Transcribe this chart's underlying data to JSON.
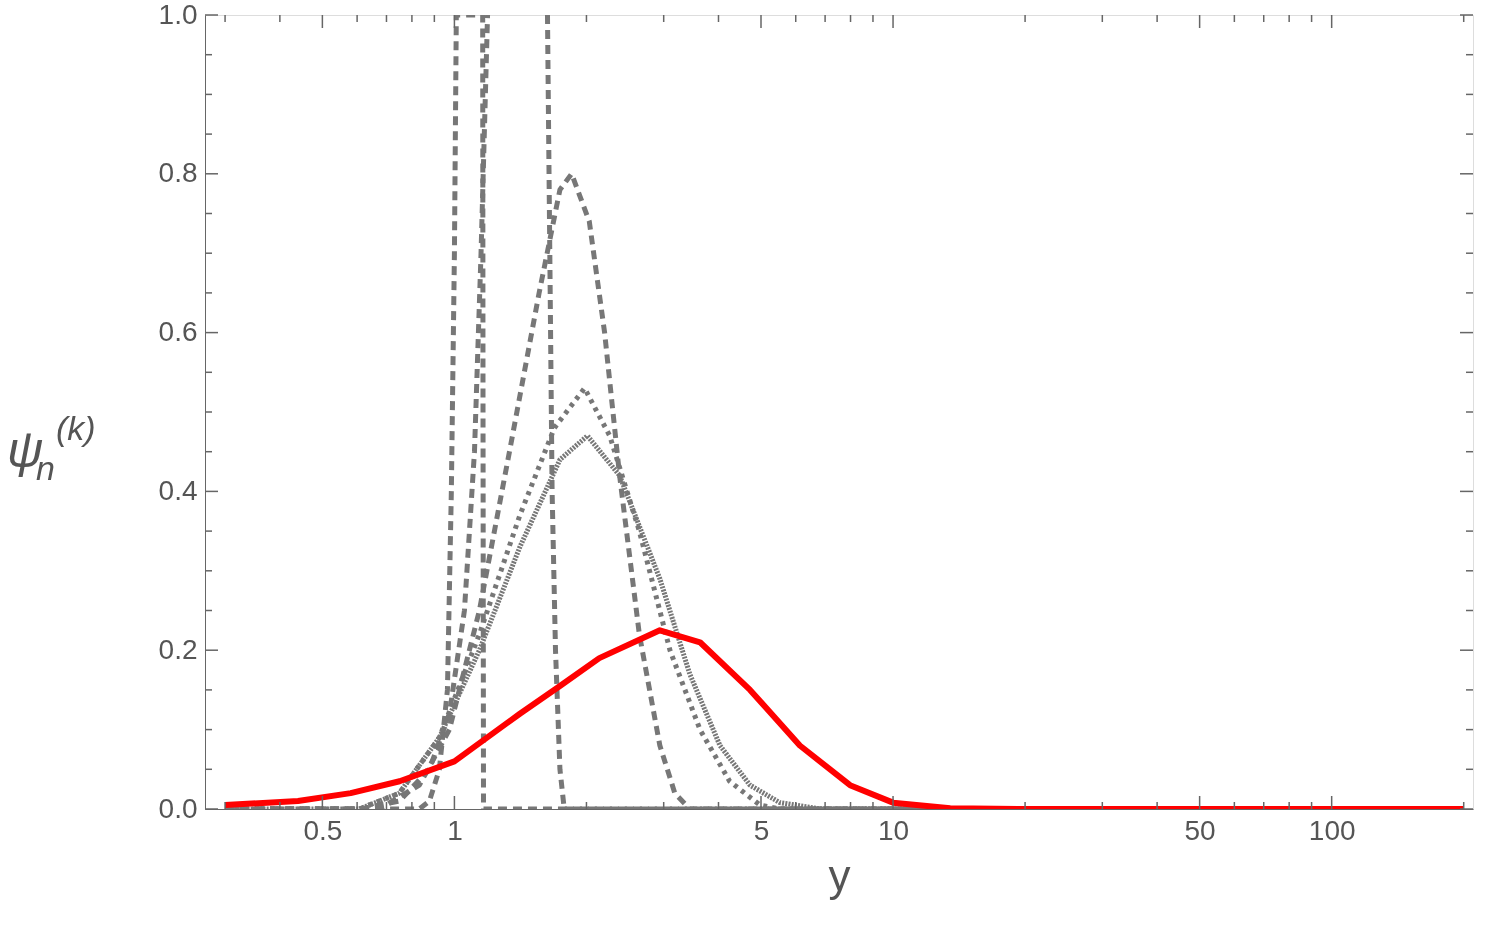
{
  "chart_data": {
    "type": "line",
    "xlabel": "y",
    "ylabel": "ψ$_{n}$$^{(k)}$",
    "log": "x",
    "grid": false,
    "xlim": [
      0.27,
      210
    ],
    "ylim": [
      0,
      1
    ],
    "xticks": [
      {
        "value": 0.3,
        "label": null
      },
      {
        "value": 0.4,
        "label": null
      },
      0.5,
      {
        "value": 0.6,
        "label": null
      },
      {
        "value": 0.7,
        "label": null
      },
      {
        "value": 0.8,
        "label": null
      },
      {
        "value": 0.9,
        "label": null
      },
      1,
      {
        "value": 2,
        "label": null
      },
      {
        "value": 3,
        "label": null
      },
      {
        "value": 4,
        "label": null
      },
      5,
      {
        "value": 6,
        "label": null
      },
      {
        "value": 7,
        "label": null
      },
      {
        "value": 8,
        "label": null
      },
      {
        "value": 9,
        "label": null
      },
      10,
      {
        "value": 20,
        "label": null
      },
      {
        "value": 30,
        "label": null
      },
      {
        "value": 40,
        "label": null
      },
      50,
      {
        "value": 60,
        "label": null
      },
      {
        "value": 70,
        "label": null
      },
      {
        "value": 80,
        "label": null
      },
      {
        "value": 90,
        "label": null
      },
      100,
      {
        "value": 200,
        "label": null
      }
    ],
    "yticks": [
      {
        "value": 0,
        "label": "0.0"
      },
      {
        "value": 0.05,
        "label": null
      },
      {
        "value": 0.1,
        "label": null
      },
      {
        "value": 0.15,
        "label": null
      },
      0.2,
      {
        "value": 0.25,
        "label": null
      },
      {
        "value": 0.3,
        "label": null
      },
      {
        "value": 0.35,
        "label": null
      },
      0.4,
      {
        "value": 0.45,
        "label": null
      },
      {
        "value": 0.5,
        "label": null
      },
      {
        "value": 0.55,
        "label": null
      },
      0.6,
      {
        "value": 0.65,
        "label": null
      },
      {
        "value": 0.7,
        "label": null
      },
      {
        "value": 0.75,
        "label": null
      },
      0.8,
      {
        "value": 0.85,
        "label": null
      },
      {
        "value": 0.9,
        "label": null
      },
      {
        "value": 0.95,
        "label": null
      },
      {
        "value": 1,
        "label": "1.0"
      }
    ],
    "series": [
      {
        "color": "#777777",
        "line_style": "dashed",
        "x": [
          0.3,
          0.832,
          0.877,
          0.924,
          0.964,
          0.984,
          1.0,
          1.01,
          1.16,
          1.162,
          1.165,
          200
        ],
        "values": [
          0,
          0,
          0.01,
          0.05,
          0.15,
          0.4,
          0.7,
          1.0,
          1.0,
          0.5,
          0,
          0
        ]
      },
      {
        "color": "#777777",
        "line_style": "dashed",
        "x": [
          0.3,
          0.607,
          0.749,
          0.877,
          0.974,
          1.054,
          1.111,
          1.15,
          1.19,
          1.4,
          1.63,
          1.65,
          1.67,
          1.7,
          1.74,
          1.78,
          200
        ],
        "values": [
          0,
          0,
          0.01,
          0.05,
          0.12,
          0.25,
          0.45,
          0.7,
          1.0,
          null,
          1.0,
          0.7,
          0.4,
          0.2,
          0.05,
          0,
          0
        ]
      },
      {
        "color": "#777777",
        "line_style": "dashed",
        "x": [
          0.3,
          0.674,
          0.832,
          0.974,
          1.14,
          1.335,
          1.56,
          1.74,
          1.85,
          2.03,
          2.2,
          2.38,
          2.64,
          2.94,
          3.18,
          3.44,
          200
        ],
        "values": [
          0,
          0,
          0.03,
          0.1,
          0.25,
          0.45,
          0.65,
          0.78,
          0.8,
          0.74,
          0.6,
          0.42,
          0.22,
          0.08,
          0.02,
          0,
          0
        ]
      },
      {
        "color": "#777777",
        "line_style": "dotted",
        "x": [
          0.3,
          0.607,
          0.749,
          0.924,
          1.14,
          1.41,
          1.69,
          1.98,
          2.26,
          2.64,
          3.1,
          3.63,
          4.24,
          4.97,
          5.52,
          200
        ],
        "values": [
          0,
          0,
          0.02,
          0.09,
          0.22,
          0.37,
          0.48,
          0.53,
          0.47,
          0.35,
          0.2,
          0.1,
          0.035,
          0.005,
          0,
          0
        ]
      },
      {
        "color": "#777777",
        "line_style": "densely dotted",
        "x": [
          0.3,
          0.607,
          0.749,
          0.924,
          1.14,
          1.41,
          1.74,
          2.01,
          2.38,
          2.94,
          3.44,
          4.03,
          4.72,
          5.52,
          6.81,
          200
        ],
        "values": [
          0,
          0,
          0.02,
          0.09,
          0.2,
          0.33,
          0.44,
          0.47,
          0.42,
          0.29,
          0.17,
          0.08,
          0.03,
          0.008,
          0,
          0
        ]
      },
      {
        "color": "#ff0000",
        "line_style": "solid",
        "x": [
          0.3,
          0.44,
          0.58,
          0.75,
          1.0,
          1.41,
          1.74,
          2.14,
          2.94,
          3.63,
          4.72,
          6.13,
          7.98,
          10,
          13.5,
          20,
          200
        ],
        "values": [
          0.005,
          0.01,
          0.02,
          0.035,
          0.06,
          0.12,
          0.155,
          0.19,
          0.225,
          0.21,
          0.15,
          0.08,
          0.03,
          0.008,
          0.001,
          0,
          0
        ]
      }
    ]
  }
}
